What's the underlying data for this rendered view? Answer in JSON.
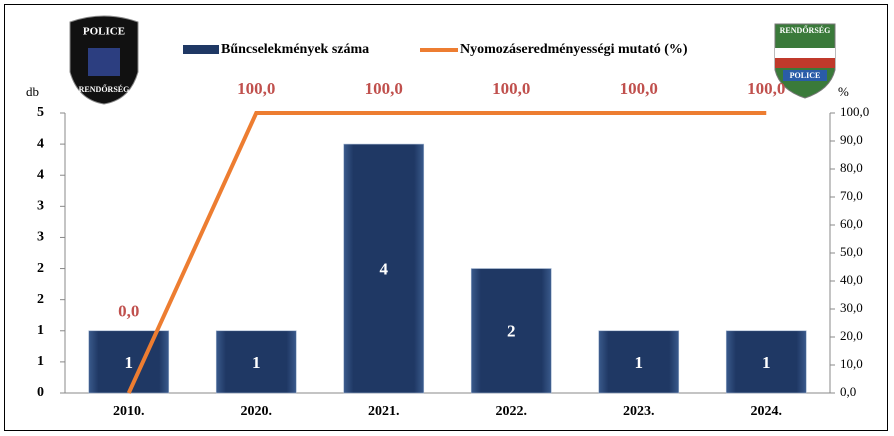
{
  "chart_data": {
    "type": "bar_line",
    "categories": [
      "2010.",
      "2020.",
      "2021.",
      "2022.",
      "2023.",
      "2024."
    ],
    "series": [
      {
        "name": "Bűncselekmények száma",
        "color": "#1f3864",
        "type": "bar",
        "values": [
          1,
          1,
          4,
          2,
          1,
          1
        ]
      },
      {
        "name": "Nyomozáseredményességi mutató (%)",
        "color": "#ed7d31",
        "type": "line",
        "axis": "y2",
        "values": [
          0,
          100,
          100,
          100,
          100,
          100
        ],
        "value_labels": [
          "0,0",
          "100,0",
          "100,0",
          "100,0",
          "100,0",
          "100,0"
        ]
      }
    ],
    "y_label": "db",
    "y2_label": "%",
    "ylim": [
      0,
      4.5
    ],
    "yticks": [
      0,
      {
        "value": 0.5,
        "label": "1"
      },
      1,
      {
        "value": 1.5,
        "label": "2"
      },
      2,
      {
        "value": 2.5,
        "label": "3"
      },
      3,
      {
        "value": 3.5,
        "label": "4"
      },
      4,
      {
        "value": 4.5,
        "label": "5"
      }
    ],
    "y2lim": [
      0,
      100
    ],
    "y2ticks": [
      {
        "value": 0,
        "label": "0,0"
      },
      {
        "value": 10,
        "label": "10,0"
      },
      {
        "value": 20,
        "label": "20,0"
      },
      {
        "value": 30,
        "label": "30,0"
      },
      {
        "value": 40,
        "label": "40,0"
      },
      {
        "value": 50,
        "label": "50,0"
      },
      {
        "value": 60,
        "label": "60,0"
      },
      {
        "value": 70,
        "label": "70,0"
      },
      {
        "value": 80,
        "label": "80,0"
      },
      {
        "value": 90,
        "label": "90,0"
      },
      {
        "value": 100,
        "label": "100,0"
      }
    ],
    "legend": "top"
  },
  "logos": {
    "left": [
      "POLICE",
      "RENDŐRSÉG"
    ],
    "right": [
      "RENDŐRSÉG",
      "POLICE"
    ]
  }
}
